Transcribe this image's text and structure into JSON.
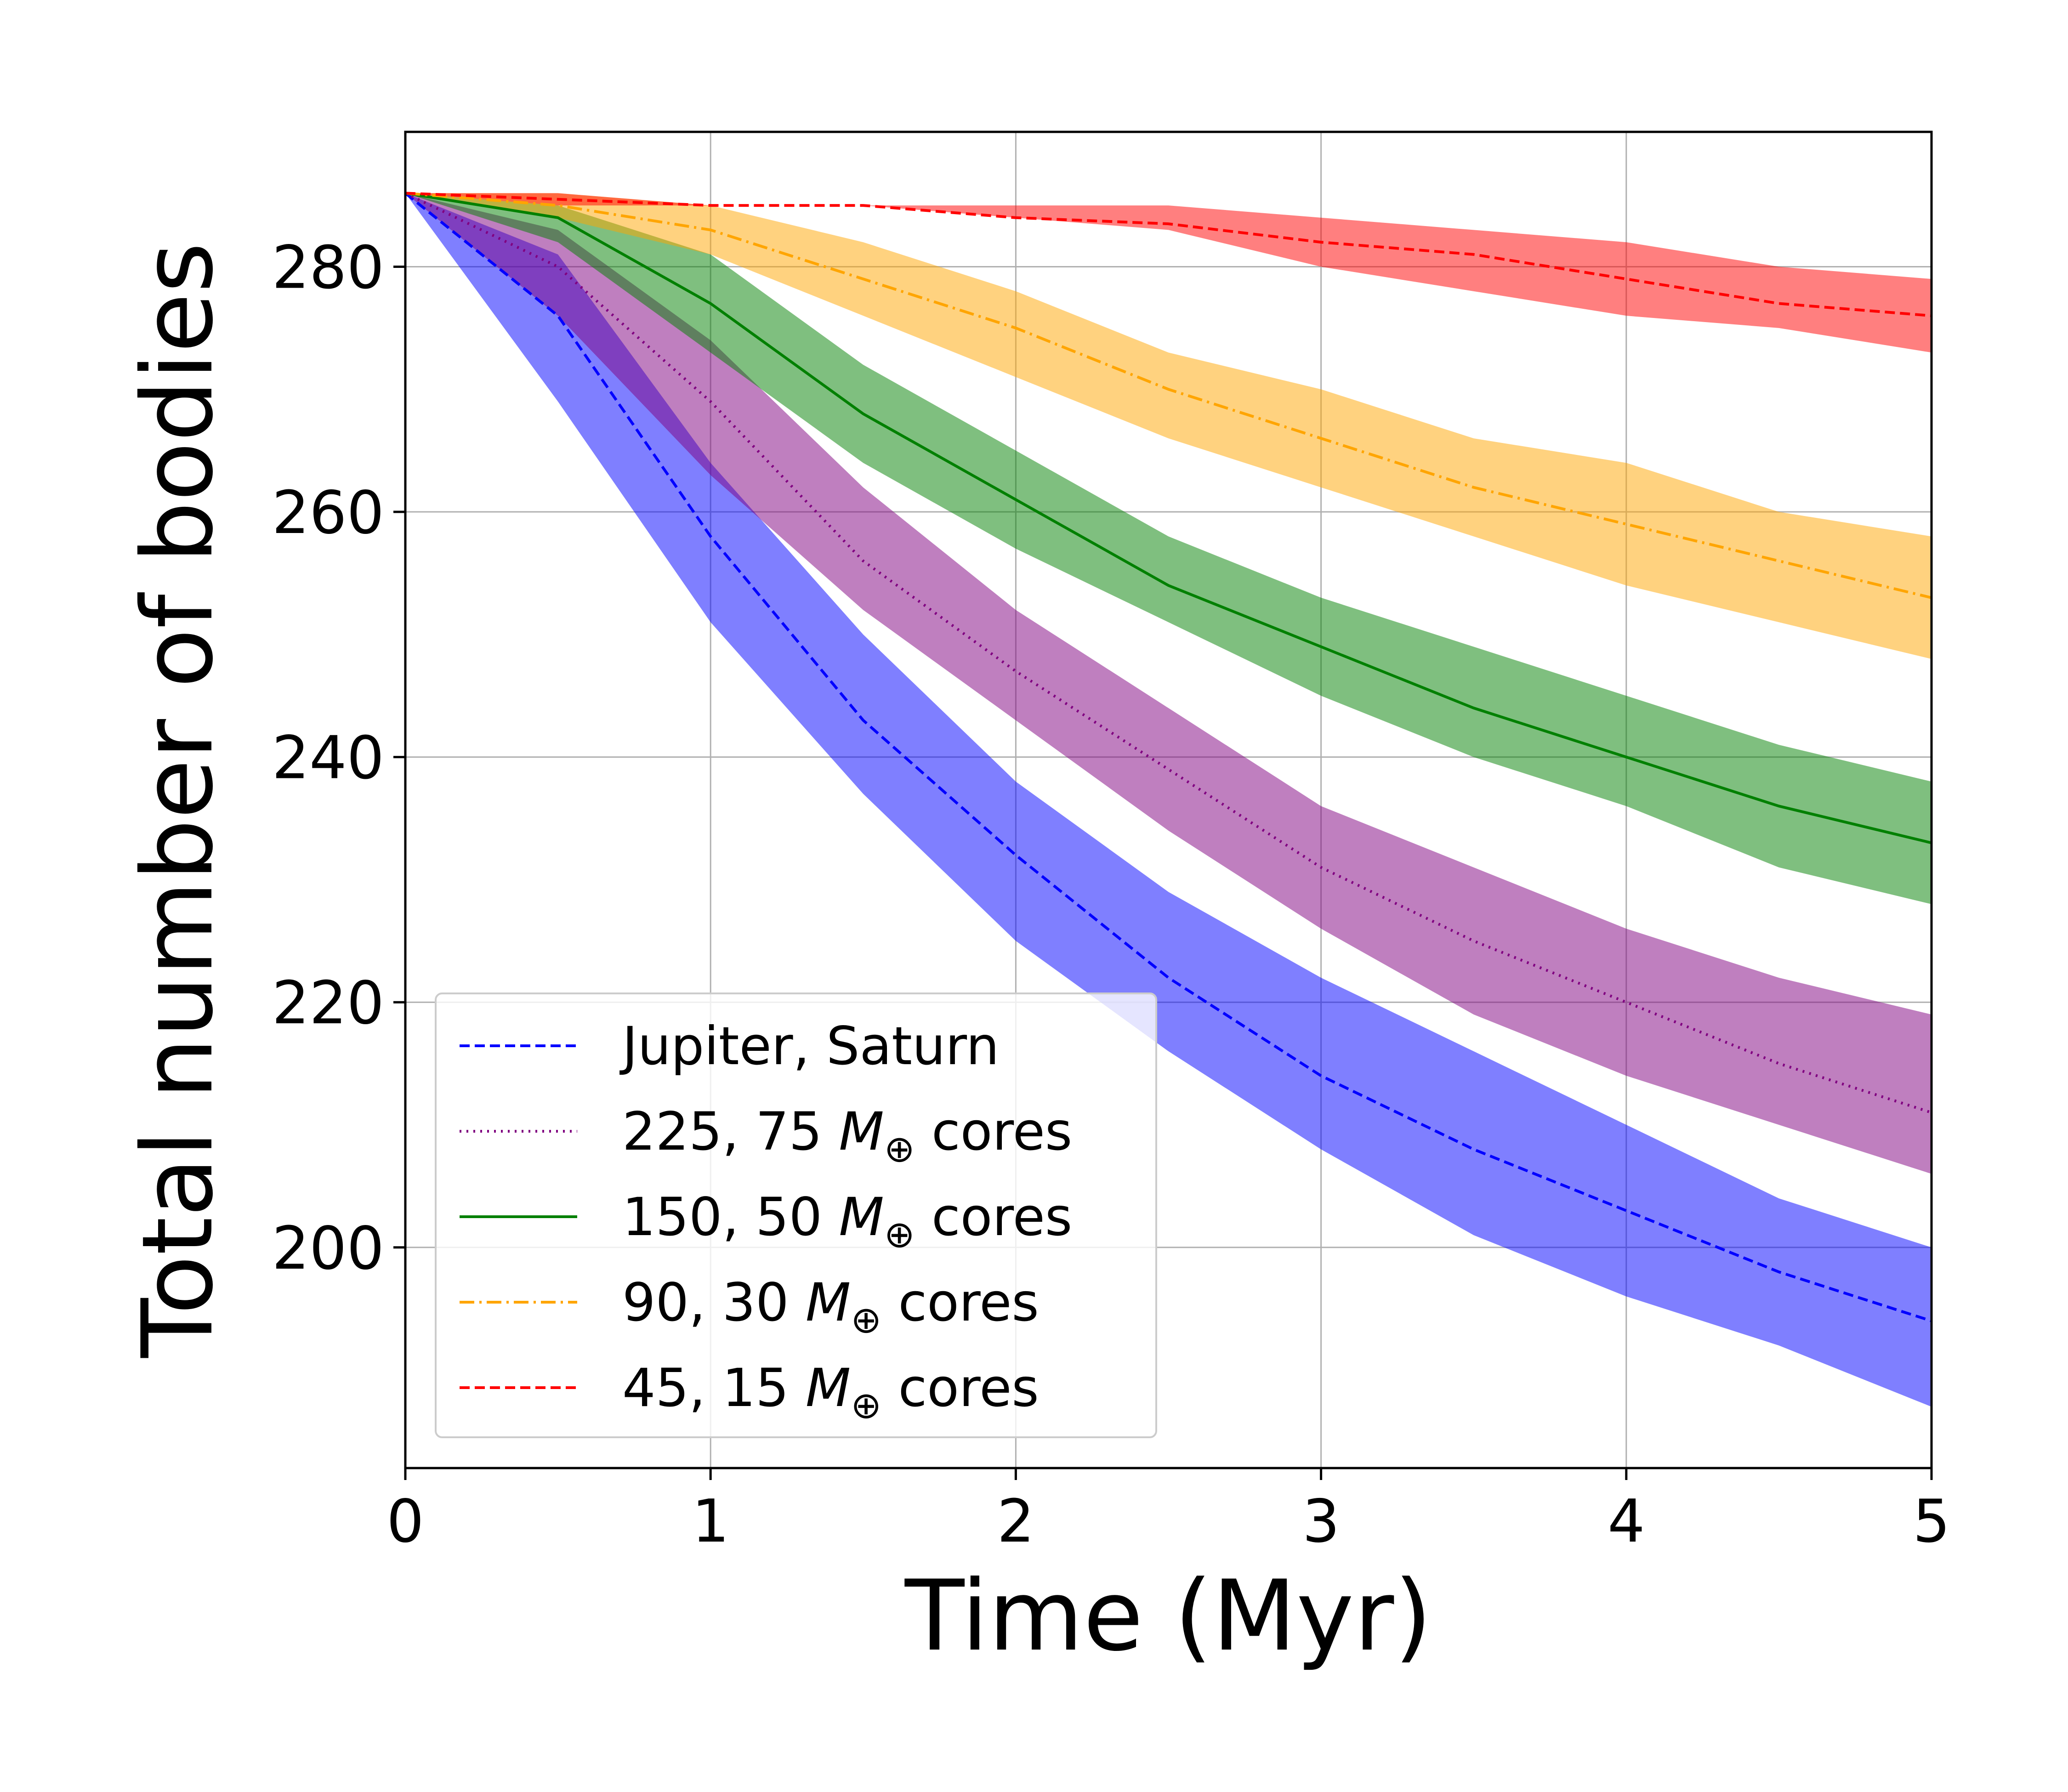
{
  "chart_data": {
    "type": "line",
    "title": "",
    "xlabel": "Time (Myr)",
    "ylabel": "Total number of bodies",
    "xlim": [
      0,
      5
    ],
    "ylim": [
      182,
      291
    ],
    "xticks": [
      0,
      1,
      2,
      3,
      4,
      5
    ],
    "yticks": [
      200,
      220,
      240,
      260,
      280
    ],
    "grid": true,
    "legend_position": "lower-left",
    "x": [
      0,
      0.5,
      1,
      1.5,
      2,
      2.5,
      3,
      3.5,
      4,
      4.5,
      5
    ],
    "series": [
      {
        "name": "Jupiter, Saturn",
        "legend_prefix": "Jupiter, Saturn",
        "legend_suffix": "",
        "color": "#0000ff",
        "band_color": "#0000ff",
        "linestyle": "dashed",
        "values": [
          286,
          276,
          258,
          243,
          232,
          222,
          214,
          208,
          203,
          198,
          194
        ],
        "lower": [
          286,
          269,
          251,
          237,
          225,
          216,
          208,
          201,
          196,
          192,
          187
        ],
        "upper": [
          286,
          281,
          264,
          250,
          238,
          229,
          222,
          216,
          210,
          204,
          200
        ]
      },
      {
        "name": "225, 75 M⊕ cores",
        "legend_prefix": "225, 75 ",
        "legend_suffix": " cores",
        "color": "#800080",
        "band_color": "#800080",
        "linestyle": "dotted",
        "values": [
          286,
          280,
          269,
          256,
          247,
          239,
          231,
          225,
          220,
          215,
          211
        ],
        "lower": [
          286,
          276,
          263,
          252,
          243,
          234,
          226,
          219,
          214,
          210,
          206
        ],
        "upper": [
          286,
          283,
          274,
          262,
          252,
          244,
          236,
          231,
          226,
          222,
          219
        ]
      },
      {
        "name": "150, 50 M⊕ cores",
        "legend_prefix": "150, 50 ",
        "legend_suffix": " cores",
        "color": "#008000",
        "band_color": "#008000",
        "linestyle": "solid",
        "values": [
          286,
          284,
          277,
          268,
          261,
          254,
          249,
          244,
          240,
          236,
          233
        ],
        "lower": [
          286,
          282,
          273,
          264,
          257,
          251,
          245,
          240,
          236,
          231,
          228
        ],
        "upper": [
          286,
          285,
          281,
          272,
          265,
          258,
          253,
          249,
          245,
          241,
          238
        ]
      },
      {
        "name": "90, 30 M⊕ cores",
        "legend_prefix": "90, 30 ",
        "legend_suffix": " cores",
        "color": "#ffa500",
        "band_color": "#ffa500",
        "linestyle": "dashdot",
        "values": [
          286,
          285,
          283,
          279,
          275,
          270,
          266,
          262,
          259,
          256,
          253
        ],
        "lower": [
          286,
          284,
          281,
          276,
          271,
          266,
          262,
          258,
          254,
          251,
          248
        ],
        "upper": [
          286,
          286,
          285,
          282,
          278,
          273,
          270,
          266,
          264,
          260,
          258
        ]
      },
      {
        "name": "45, 15 M⊕ cores",
        "legend_prefix": "45, 15 ",
        "legend_suffix": " cores",
        "color": "#ff0000",
        "band_color": "#ff0000",
        "linestyle": "dashed",
        "values": [
          286,
          285.5,
          285,
          285,
          284,
          283.5,
          282,
          281,
          279,
          277,
          276
        ],
        "lower": [
          286,
          285,
          285,
          285,
          284,
          283,
          280,
          278,
          276,
          275,
          273
        ],
        "upper": [
          286,
          286,
          285,
          285,
          285,
          285,
          284,
          283,
          282,
          280,
          279
        ]
      }
    ],
    "legend_symbol": "M",
    "legend_subscript": "⊕"
  }
}
